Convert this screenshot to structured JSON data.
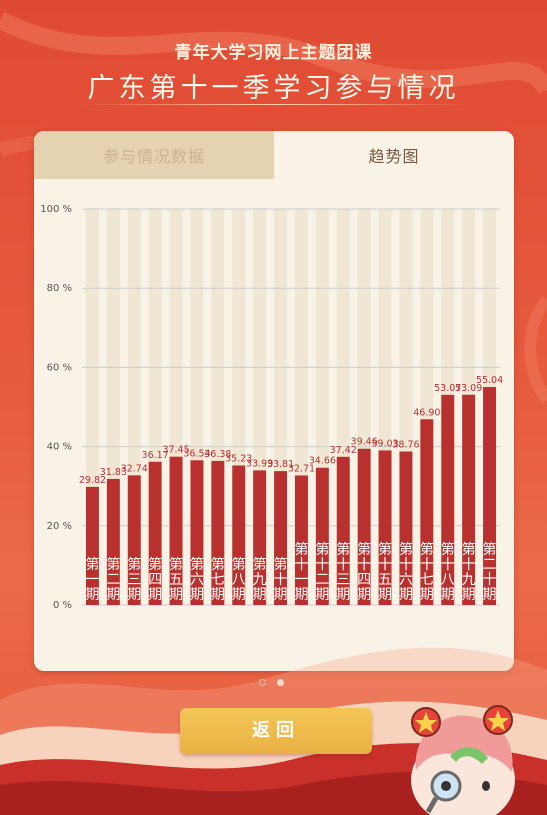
{
  "header": {
    "subtitle": "青年大学习网上主题团课",
    "title": "广东第十一季学习参与情况"
  },
  "tabs": [
    {
      "label": "参与情况数据",
      "active": false
    },
    {
      "label": "趋势图",
      "active": true
    }
  ],
  "pager": {
    "count": 2,
    "active_index": 1
  },
  "back_button": {
    "label": "返回"
  },
  "colors": {
    "background": "#e04a33",
    "bar": "#b9312e",
    "panel": "#f9f3e7",
    "button": "#f0bd52",
    "value_label": "#b9312e"
  },
  "icons": [
    "mascot-icon"
  ],
  "chart_data": {
    "type": "bar",
    "y_ticks": [
      "100 %",
      "80 %",
      "60 %",
      "40 %",
      "20 %",
      "0 %"
    ],
    "ylim": [
      0,
      100
    ],
    "grid": true,
    "categories": [
      "第一期",
      "第二期",
      "第三期",
      "第四期",
      "第五期",
      "第六期",
      "第七期",
      "第八期",
      "第九期",
      "第十期",
      "第十一期",
      "第十二期",
      "第十三期",
      "第十四期",
      "第十五期",
      "第十六期",
      "第十七期",
      "第十八期",
      "第十九期",
      "第二十期"
    ],
    "values": [
      29.82,
      31.83,
      32.74,
      36.17,
      37.45,
      36.54,
      36.38,
      35.23,
      33.99,
      33.81,
      32.71,
      34.66,
      37.42,
      39.46,
      39.03,
      38.76,
      46.9,
      53.07,
      53.09,
      55.04
    ],
    "value_labels": [
      "29.82",
      "31.83",
      "32.74",
      "36.17",
      "37.45",
      "36.54",
      "36.38",
      "35.23",
      "33.99",
      "33.81",
      "32.71",
      "34.66",
      "37.42",
      "39.46",
      "39.03",
      "38.76",
      "46.90",
      "53.07",
      "53.09",
      "55.04"
    ]
  }
}
